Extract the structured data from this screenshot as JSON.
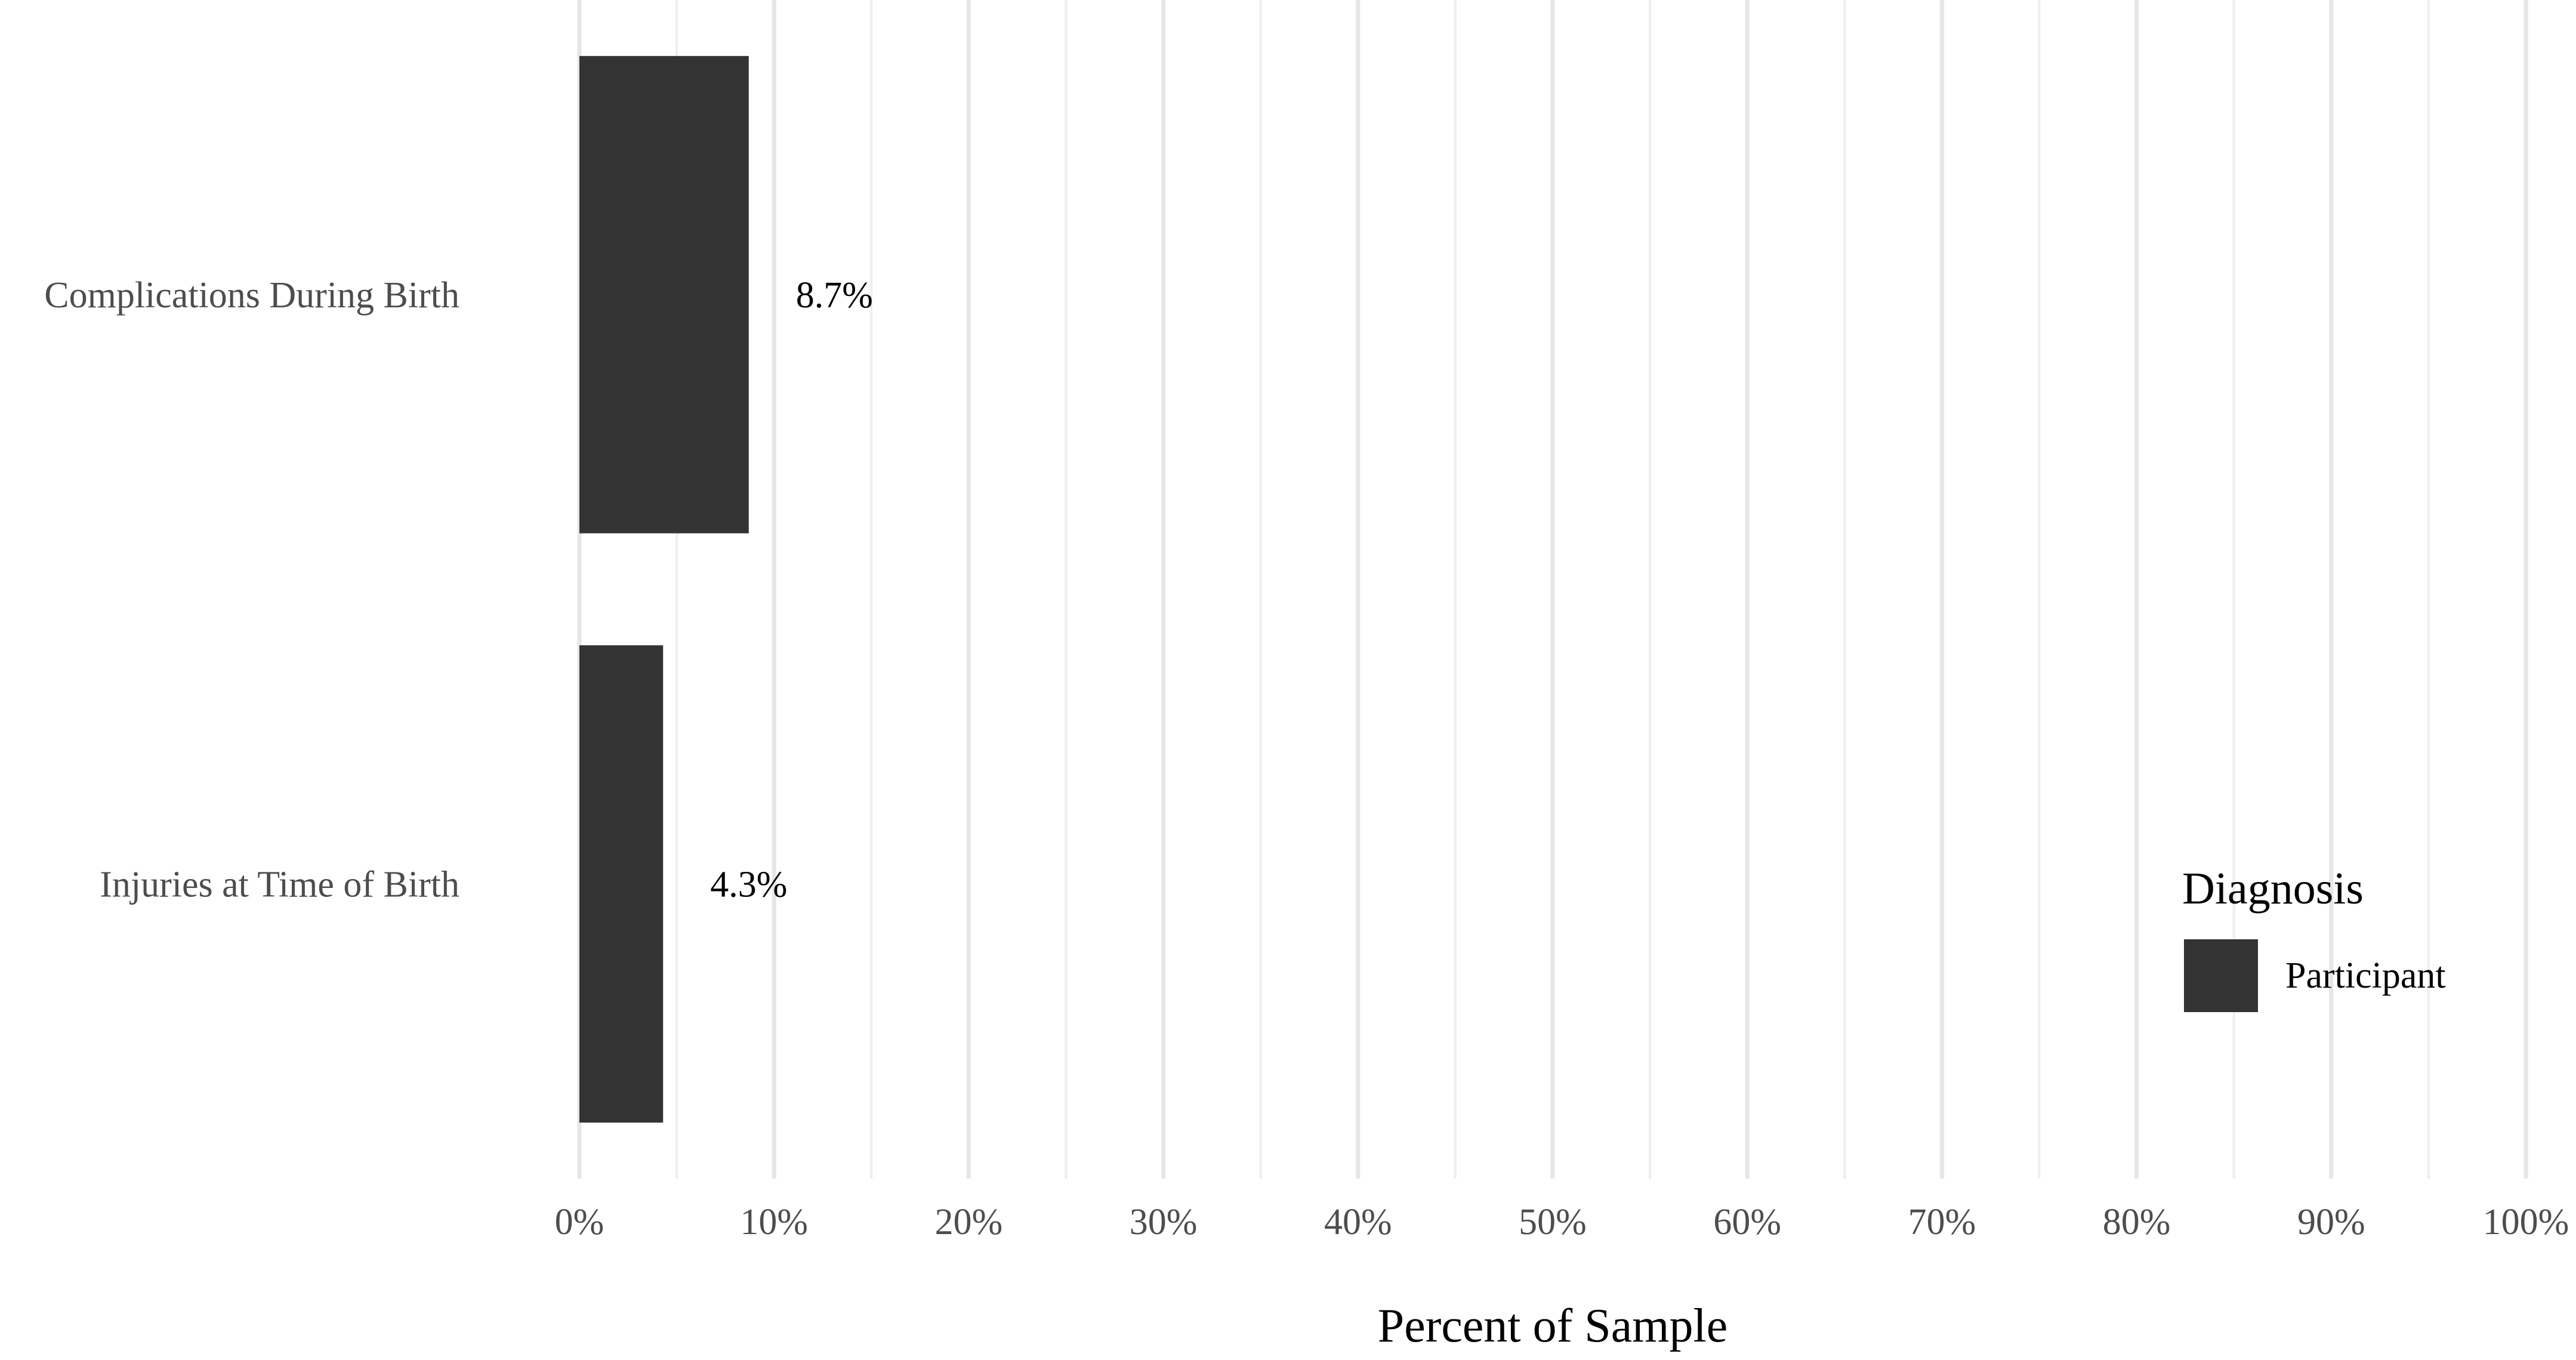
{
  "chart_data": {
    "type": "bar",
    "orientation": "horizontal",
    "categories": [
      "Complications During Birth",
      "Injuries at Time of Birth"
    ],
    "series": [
      {
        "name": "Participant",
        "values": [
          8.7,
          4.3
        ],
        "color": "#333333"
      }
    ],
    "data_labels": [
      "8.7%",
      "4.3%"
    ],
    "xlabel": "Percent of Sample",
    "ylabel": "",
    "xlim": [
      0,
      100
    ],
    "xticks": [
      0,
      10,
      20,
      30,
      40,
      50,
      60,
      70,
      80,
      90,
      100
    ],
    "xtick_labels": [
      "0%",
      "10%",
      "20%",
      "30%",
      "40%",
      "50%",
      "60%",
      "70%",
      "80%",
      "90%",
      "100%"
    ],
    "grid": "vertical",
    "legend": {
      "title": "Diagnosis",
      "position": "right",
      "entries": [
        "Participant"
      ]
    }
  }
}
